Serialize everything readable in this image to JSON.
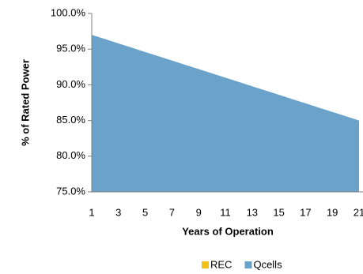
{
  "chart_data": {
    "type": "area",
    "y_label": "% of Rated Power",
    "x_label": "Years of Operation",
    "categories": [
      1,
      null,
      3,
      null,
      5,
      null,
      7,
      null,
      9,
      null,
      11,
      null,
      13,
      null,
      15,
      null,
      17,
      null,
      19,
      null,
      21
    ],
    "series": [
      {
        "name": "REC",
        "color": "#f2c314",
        "values": [
          null,
          null,
          null,
          null,
          null,
          null,
          null,
          null,
          null,
          null,
          null,
          null,
          null,
          null,
          null,
          null,
          null,
          null,
          null,
          null,
          null
        ]
      },
      {
        "name": "Qcells",
        "color": "#6aa2c9",
        "values": [
          97.0,
          96.4,
          95.8,
          95.2,
          94.6,
          94.0,
          93.4,
          92.8,
          92.2,
          91.6,
          91.0,
          90.4,
          89.8,
          89.2,
          88.6,
          88.0,
          87.4,
          86.8,
          86.2,
          85.6,
          85.0
        ]
      }
    ],
    "ylim": [
      75,
      100
    ],
    "yticks": [
      {
        "value": 75,
        "label": "75.0%"
      },
      {
        "value": 80,
        "label": "80.0%"
      },
      {
        "value": 85,
        "label": "85.0%"
      },
      {
        "value": 90,
        "label": "90.0%"
      },
      {
        "value": 95,
        "label": "95.0%"
      },
      {
        "value": 100,
        "label": "100.0%"
      }
    ],
    "legend": "bottom"
  }
}
